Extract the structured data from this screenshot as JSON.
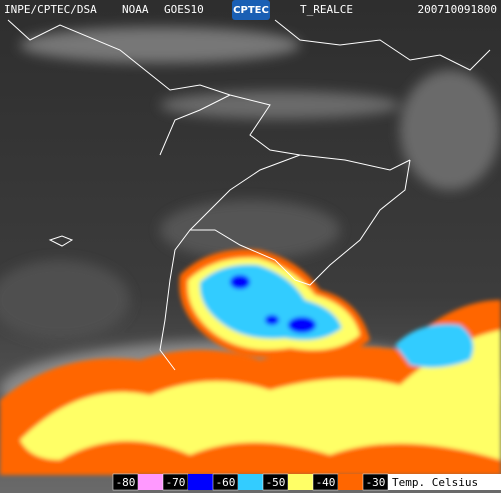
{
  "header": {
    "source": "INPE/CPTEC/DSA",
    "agency": "NOAA",
    "satellite": "GOES10",
    "logo": "CPTEC",
    "product": "T_REALCE",
    "timestamp": "200710091800"
  },
  "legend": {
    "title": "Temp. Celsius",
    "levels": [
      -80,
      -70,
      -60,
      -50,
      -40,
      -30
    ],
    "colors": [
      "#ff99ff",
      "#0000ff",
      "#33ccff",
      "#ffff66",
      "#ff6600"
    ]
  }
}
